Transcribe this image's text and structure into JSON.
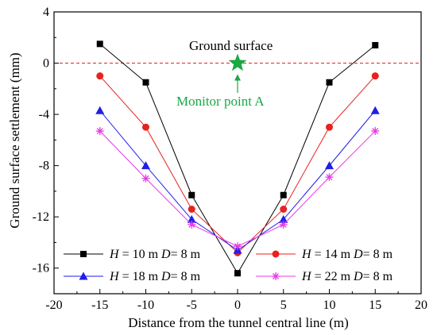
{
  "chart_data": {
    "type": "line",
    "xlabel": "Distance from the tunnel central line (m)",
    "ylabel": "Ground surface settlement (mm)",
    "xlim": [
      -20,
      20
    ],
    "ylim": [
      -18,
      4
    ],
    "xticks": [
      -20,
      -15,
      -10,
      -5,
      0,
      5,
      10,
      15,
      20
    ],
    "yticks": [
      4,
      0,
      -4,
      -8,
      -12,
      -16
    ],
    "x": [
      -15,
      -10,
      -5,
      0,
      5,
      10,
      15
    ],
    "series": [
      {
        "name": "H = 10 m D= 8 m",
        "color": "#000000",
        "marker": "square",
        "values": [
          1.5,
          -1.5,
          -10.3,
          -16.4,
          -10.3,
          -1.5,
          1.4
        ]
      },
      {
        "name": "H = 14 m D= 8 m",
        "color": "#e8221f",
        "marker": "circle",
        "values": [
          -1.0,
          -5.0,
          -11.4,
          -14.8,
          -11.4,
          -5.0,
          -1.0
        ]
      },
      {
        "name": "H = 18 m D= 8 m",
        "color": "#1f1fe8",
        "marker": "triangle",
        "values": [
          -3.7,
          -8.0,
          -12.2,
          -14.6,
          -12.2,
          -8.0,
          -3.7
        ]
      },
      {
        "name": "H = 22 m D= 8 m",
        "color": "#e83be8",
        "marker": "star",
        "values": [
          -5.3,
          -9.0,
          -12.6,
          -14.3,
          -12.6,
          -8.9,
          -5.3
        ]
      }
    ],
    "reference_line": {
      "y": 0,
      "color": "#e8221f",
      "style": "dashed"
    },
    "annotations": {
      "ground_surface": "Ground surface",
      "monitor_point": "Monitor point A",
      "monitor_color": "#1aa843"
    },
    "legend": {
      "placement": "bottom",
      "items": [
        {
          "italic": "H",
          "rest": " = 10 m ",
          "italic2": "D",
          "rest2": "= 8 m"
        },
        {
          "italic": "H",
          "rest": " = 14 m ",
          "italic2": "D",
          "rest2": "= 8 m"
        },
        {
          "italic": "H",
          "rest": " = 18 m ",
          "italic2": "D",
          "rest2": "= 8 m"
        },
        {
          "italic": "H",
          "rest": " = 22 m ",
          "italic2": "D",
          "rest2": "= 8 m"
        }
      ]
    }
  }
}
